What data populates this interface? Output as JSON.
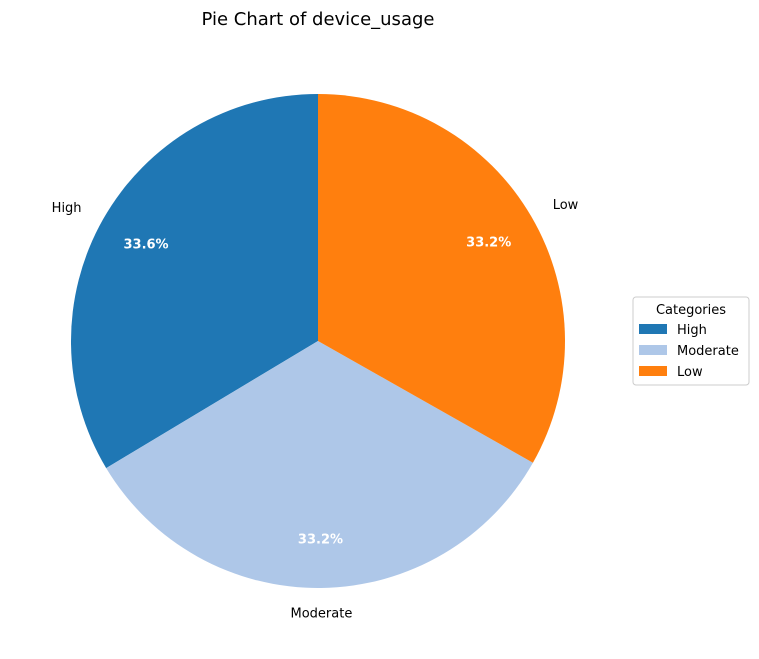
{
  "chart_data": {
    "type": "pie",
    "title": "Pie Chart of device_usage",
    "categories": [
      "High",
      "Moderate",
      "Low"
    ],
    "values": [
      33.6,
      33.2,
      33.2
    ],
    "value_labels": [
      "33.6%",
      "33.2%",
      "33.2%"
    ],
    "colors": [
      "#1f77b4",
      "#aec7e8",
      "#ff7f0e"
    ],
    "start_angle_deg": 90,
    "direction": "counterclockwise",
    "legend": {
      "title": "Categories",
      "placement": "center-right",
      "entries": [
        "High",
        "Moderate",
        "Low"
      ]
    }
  }
}
